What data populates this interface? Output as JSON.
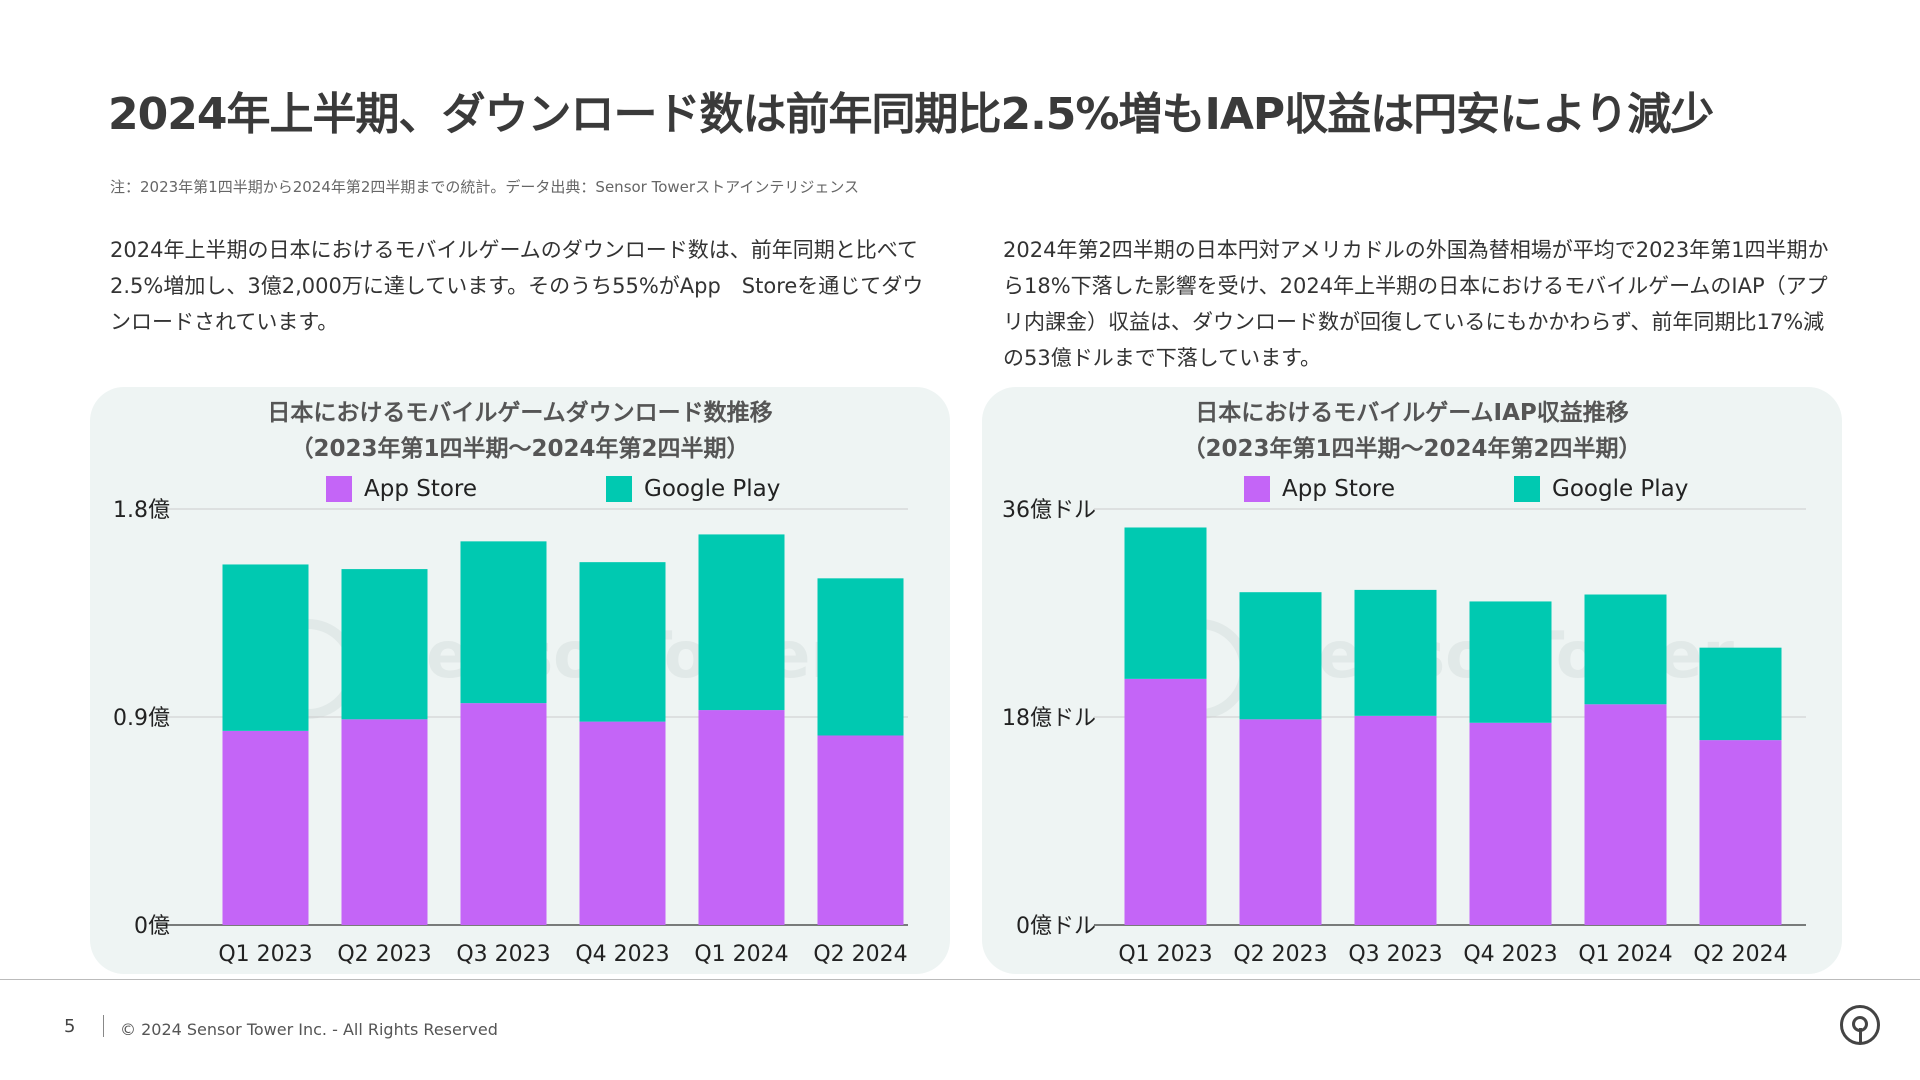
{
  "page": {
    "title": "2024年上半期、ダウンロード数は前年同期比2.5%増もIAP収益は円安により減少",
    "note": "注：2023年第1四半期から2024年第2四半期までの統計。データ出典：Sensor Towerストアインテリジェンス",
    "paragraph_left": "2024年上半期の日本におけるモバイルゲームのダウンロード数は、前年同期と比べて2.5%増加し、3億2,000万に達しています。そのうち55%がApp　Storeを通じてダウンロードされています。",
    "paragraph_right": "2024年第2四半期の日本円対アメリカドルの外国為替相場が平均で2023年第1四半期から18%下落した影響を受け、2024年上半期の日本におけるモバイルゲームのIAP（アプリ内課金）収益は、ダウンロード数が回復しているにもかかわらず、前年同期比17%減の53億ドルまで下落しています。",
    "watermark": "SensorTower"
  },
  "footer": {
    "page_number": "5",
    "copyright": "© 2024 Sensor Tower Inc. - All Rights Reserved"
  },
  "colors": {
    "app_store": "#c465f7",
    "google_play": "#00c9b1",
    "grid": "#cccccc",
    "panel": "#eef4f3"
  },
  "chart_data": [
    {
      "type": "bar",
      "stacked": true,
      "title_line1": "日本におけるモバイルゲームダウンロード数推移",
      "title_line2": "（2023年第1四半期〜2024年第2四半期）",
      "categories": [
        "Q1 2023",
        "Q2 2023",
        "Q3 2023",
        "Q4 2023",
        "Q1 2024",
        "Q2 2024"
      ],
      "series": [
        {
          "name": "App Store",
          "color": "#c465f7",
          "values": [
            0.84,
            0.89,
            0.96,
            0.88,
            0.93,
            0.82
          ]
        },
        {
          "name": "Google Play",
          "color": "#00c9b1",
          "values": [
            0.72,
            0.65,
            0.7,
            0.69,
            0.76,
            0.68
          ]
        }
      ],
      "yticks": [
        "0億",
        "0.9億",
        "1.8億"
      ],
      "ytick_values": [
        0,
        0.9,
        1.8
      ],
      "ylim": [
        0,
        1.8
      ],
      "grid": true,
      "legend_position": "top"
    },
    {
      "type": "bar",
      "stacked": true,
      "title_line1": "日本におけるモバイルゲームIAP収益推移",
      "title_line2": "（2023年第1四半期〜2024年第2四半期）",
      "categories": [
        "Q1 2023",
        "Q2 2023",
        "Q3 2023",
        "Q4 2023",
        "Q1 2024",
        "Q2 2024"
      ],
      "series": [
        {
          "name": "App Store",
          "color": "#c465f7",
          "values": [
            21.3,
            17.8,
            18.1,
            17.5,
            19.1,
            16.0
          ]
        },
        {
          "name": "Google Play",
          "color": "#00c9b1",
          "values": [
            13.1,
            11.0,
            10.9,
            10.5,
            9.5,
            8.0
          ]
        }
      ],
      "yticks": [
        "0億ドル",
        "18億ドル",
        "36億ドル"
      ],
      "ytick_values": [
        0,
        18,
        36
      ],
      "ylim": [
        0,
        36
      ],
      "grid": true,
      "legend_position": "top"
    }
  ]
}
